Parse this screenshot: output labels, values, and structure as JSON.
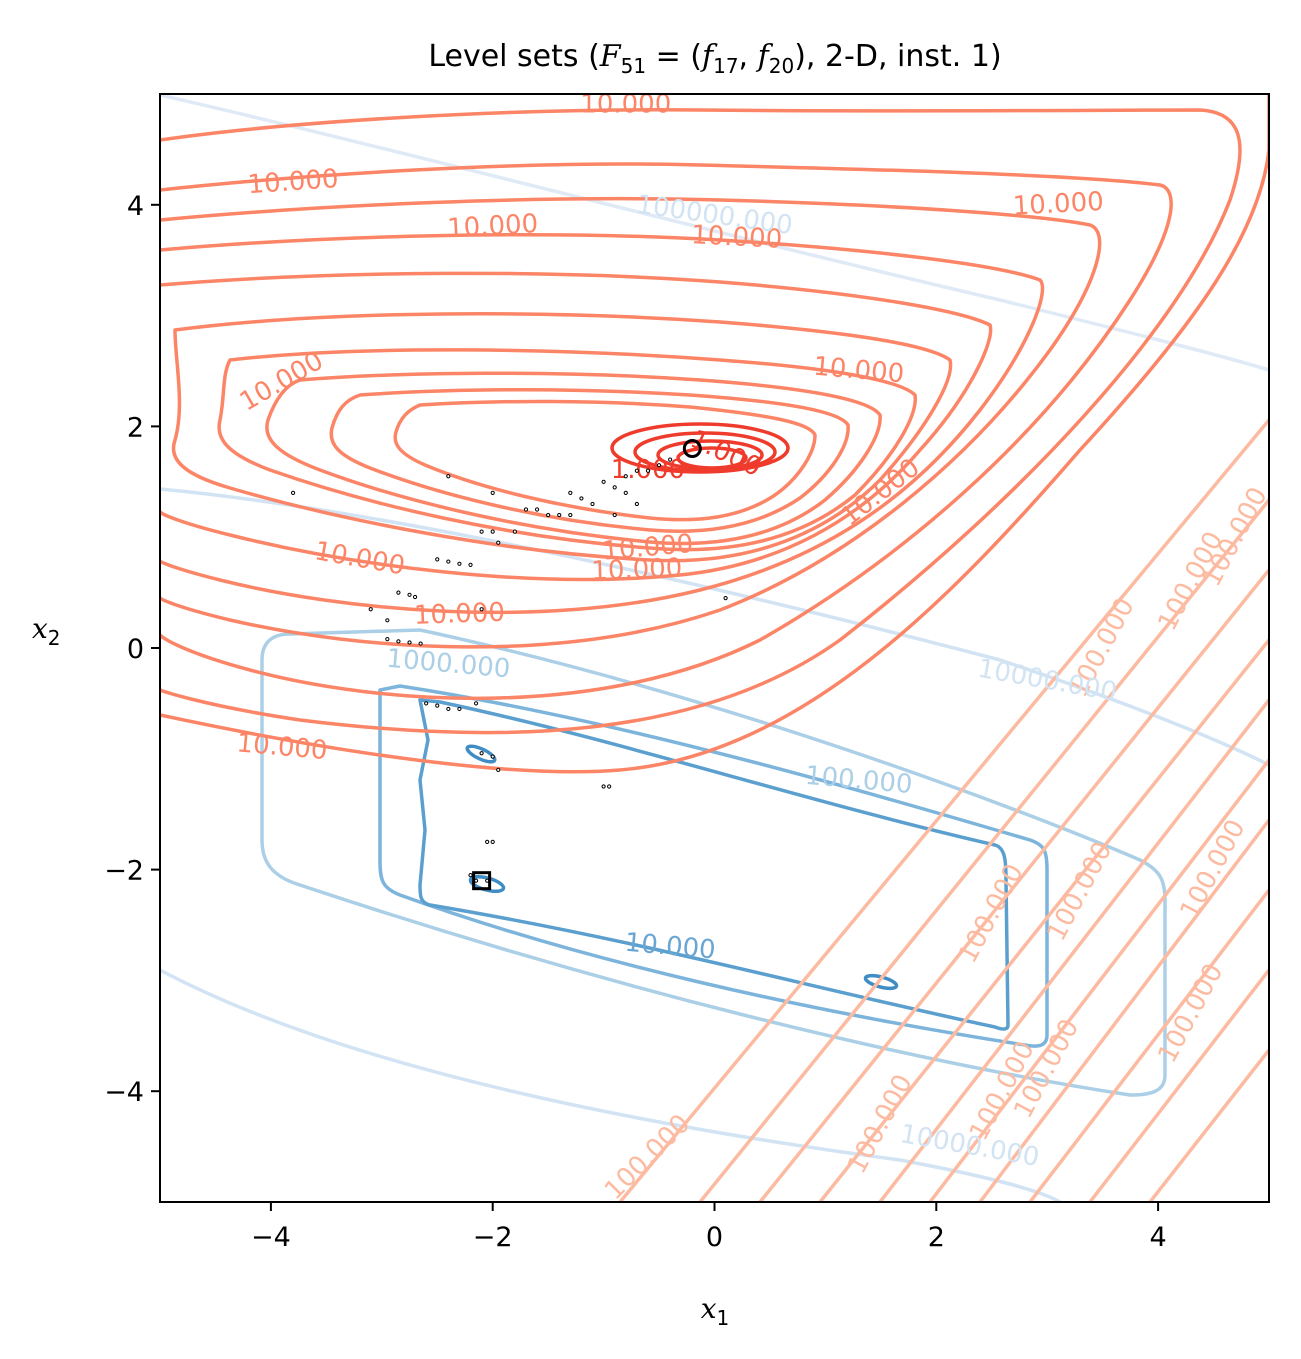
{
  "chart_data": {
    "type": "contour",
    "title": "Level sets (F51 = (f17, f20), 2-D, inst. 1)",
    "title_parts": {
      "prefix": "Level sets (",
      "F": "F",
      "F_sub": "51",
      "eq": " = (",
      "f1": "f",
      "f1_sub": "17",
      "comma": ", ",
      "f2": "f",
      "f2_sub": "20",
      "suffix": "), 2-D, inst. 1)"
    },
    "xlabel": {
      "base": "x",
      "sub": "1"
    },
    "ylabel": {
      "base": "x",
      "sub": "2"
    },
    "xlim": [
      -5,
      5
    ],
    "ylim": [
      -5,
      5
    ],
    "xticks": [
      {
        "value": -4,
        "label": "−4"
      },
      {
        "value": -2,
        "label": "−2"
      },
      {
        "value": 0,
        "label": "0"
      },
      {
        "value": 2,
        "label": "2"
      },
      {
        "value": 4,
        "label": "4"
      }
    ],
    "yticks": [
      {
        "value": -4,
        "label": "−4"
      },
      {
        "value": -2,
        "label": "−2"
      },
      {
        "value": 0,
        "label": "0"
      },
      {
        "value": 2,
        "label": "2"
      },
      {
        "value": 4,
        "label": "4"
      }
    ],
    "colors": {
      "red_dark": "#ef3b2c",
      "red_mid": "#fb8566",
      "red_light": "#fcbba1",
      "blue_dark": "#3f8dc4",
      "blue_mid": "#69a6d3",
      "blue_light": "#abcfe6",
      "blue_faint": "#d2e3f3"
    },
    "series": [
      {
        "family": "f17",
        "levels_shown": [
          "1.000",
          "10.000",
          "100.000",
          "100000.000"
        ],
        "optimum": [
          -0.2,
          1.8
        ],
        "contour_labels": [
          {
            "text": "10.000",
            "x": -0.8,
            "y": 4.9,
            "color": "red_mid",
            "rot": 0
          },
          {
            "text": "10.000",
            "x": -3.8,
            "y": 4.2,
            "color": "red_mid",
            "rot": -4
          },
          {
            "text": "10.000",
            "x": -2.0,
            "y": 3.8,
            "color": "red_mid",
            "rot": -3
          },
          {
            "text": "10.000",
            "x": 0.2,
            "y": 3.7,
            "color": "red_mid",
            "rot": 3
          },
          {
            "text": "10.000",
            "x": 3.1,
            "y": 4.0,
            "color": "red_mid",
            "rot": -3
          },
          {
            "text": "10.000",
            "x": -3.9,
            "y": 2.4,
            "color": "red_mid",
            "rot": -30
          },
          {
            "text": "10.000",
            "x": 1.3,
            "y": 2.5,
            "color": "red_mid",
            "rot": 5
          },
          {
            "text": "10.000",
            "x": -3.2,
            "y": 0.8,
            "color": "red_mid",
            "rot": 10
          },
          {
            "text": "10.000",
            "x": -0.6,
            "y": 0.9,
            "color": "red_mid",
            "rot": -5
          },
          {
            "text": "10.000",
            "x": -0.7,
            "y": 0.7,
            "color": "red_mid",
            "rot": -2
          },
          {
            "text": "10.000",
            "x": -2.3,
            "y": 0.3,
            "color": "red_mid",
            "rot": -2
          },
          {
            "text": "10.000",
            "x": 1.5,
            "y": 1.4,
            "color": "red_mid",
            "rot": -38
          },
          {
            "text": "10.000",
            "x": -3.9,
            "y": -0.9,
            "color": "red_mid",
            "rot": 5
          },
          {
            "text": "1.000",
            "x": 0.1,
            "y": 1.75,
            "color": "red_dark",
            "rot": 25
          },
          {
            "text": "1.000",
            "x": -0.6,
            "y": 1.6,
            "color": "red_dark",
            "rot": 0
          },
          {
            "text": "100000.000",
            "x": 0.0,
            "y": 3.9,
            "color": "blue_faint",
            "rot": 8
          },
          {
            "text": "100.000",
            "x": 3.5,
            "y": 0.0,
            "color": "red_light",
            "rot": -62
          },
          {
            "text": "100.000",
            "x": 4.3,
            "y": 0.6,
            "color": "red_light",
            "rot": -62
          },
          {
            "text": "100.000",
            "x": 4.7,
            "y": 1.0,
            "color": "red_light",
            "rot": -62
          },
          {
            "text": "100.000",
            "x": 2.5,
            "y": -2.4,
            "color": "red_light",
            "rot": -62
          },
          {
            "text": "100.000",
            "x": 3.3,
            "y": -2.2,
            "color": "red_light",
            "rot": -62
          },
          {
            "text": "100.000",
            "x": 4.5,
            "y": -2.0,
            "color": "red_light",
            "rot": -62
          },
          {
            "text": "100.000",
            "x": -0.6,
            "y": -4.6,
            "color": "red_light",
            "rot": -45
          },
          {
            "text": "100.000",
            "x": 1.5,
            "y": -4.3,
            "color": "red_light",
            "rot": -62
          },
          {
            "text": "100.000",
            "x": 2.6,
            "y": -4.0,
            "color": "red_light",
            "rot": -62
          },
          {
            "text": "100.000",
            "x": 3.0,
            "y": -3.8,
            "color": "red_light",
            "rot": -62
          },
          {
            "text": "100.000",
            "x": 4.3,
            "y": -3.3,
            "color": "red_light",
            "rot": -62
          }
        ]
      },
      {
        "family": "f20",
        "levels_shown": [
          "10.000",
          "100.000",
          "1000.000",
          "10000.000"
        ],
        "optimum": [
          -2.1,
          -2.1
        ],
        "contour_labels": [
          {
            "text": "10.000",
            "x": -0.4,
            "y": -2.7,
            "color": "blue_mid",
            "rot": 5
          },
          {
            "text": "100.000",
            "x": 1.3,
            "y": -1.2,
            "color": "blue_light",
            "rot": 5
          },
          {
            "text": "1000.000",
            "x": -2.4,
            "y": -0.15,
            "color": "blue_light",
            "rot": 5
          },
          {
            "text": "10000.000",
            "x": 3.0,
            "y": -0.3,
            "color": "blue_faint",
            "rot": 10
          },
          {
            "text": "10000.000",
            "x": 2.3,
            "y": -4.5,
            "color": "blue_faint",
            "rot": 10
          }
        ]
      }
    ],
    "scatter": [
      [
        -3.8,
        1.4
      ],
      [
        -2.4,
        1.55
      ],
      [
        -2.0,
        1.4
      ],
      [
        -1.95,
        0.95
      ],
      [
        -2.1,
        1.05
      ],
      [
        -2.0,
        1.05
      ],
      [
        -1.8,
        1.05
      ],
      [
        -1.7,
        1.25
      ],
      [
        -1.6,
        1.25
      ],
      [
        -1.5,
        1.2
      ],
      [
        -1.4,
        1.2
      ],
      [
        -1.3,
        1.2
      ],
      [
        -1.3,
        1.4
      ],
      [
        -1.2,
        1.35
      ],
      [
        -1.1,
        1.3
      ],
      [
        -1.0,
        1.5
      ],
      [
        -0.9,
        1.45
      ],
      [
        -0.8,
        1.4
      ],
      [
        -0.8,
        1.55
      ],
      [
        -0.7,
        1.6
      ],
      [
        -0.6,
        1.6
      ],
      [
        -0.5,
        1.65
      ],
      [
        -0.4,
        1.7
      ],
      [
        -0.7,
        1.3
      ],
      [
        -0.9,
        1.2
      ],
      [
        -2.5,
        0.8
      ],
      [
        -2.4,
        0.78
      ],
      [
        -2.3,
        0.76
      ],
      [
        -2.2,
        0.75
      ],
      [
        -3.1,
        0.35
      ],
      [
        -2.95,
        0.25
      ],
      [
        -2.85,
        0.5
      ],
      [
        -2.75,
        0.48
      ],
      [
        -2.7,
        0.46
      ],
      [
        -2.1,
        0.35
      ],
      [
        -2.95,
        0.08
      ],
      [
        -2.85,
        0.06
      ],
      [
        -2.75,
        0.05
      ],
      [
        -2.65,
        0.04
      ],
      [
        0.1,
        0.45
      ],
      [
        -2.6,
        -0.5
      ],
      [
        -2.5,
        -0.52
      ],
      [
        -2.4,
        -0.55
      ],
      [
        -2.3,
        -0.55
      ],
      [
        -2.15,
        -0.5
      ],
      [
        -2.1,
        -0.95
      ],
      [
        -2.0,
        -0.98
      ],
      [
        -1.95,
        -1.1
      ],
      [
        -1.0,
        -1.25
      ],
      [
        -0.95,
        -1.25
      ],
      [
        -2.05,
        -1.75
      ],
      [
        -2.0,
        -1.75
      ],
      [
        -2.15,
        -2.1
      ],
      [
        -2.2,
        -2.05
      ],
      [
        -2.05,
        -2.1
      ]
    ]
  }
}
